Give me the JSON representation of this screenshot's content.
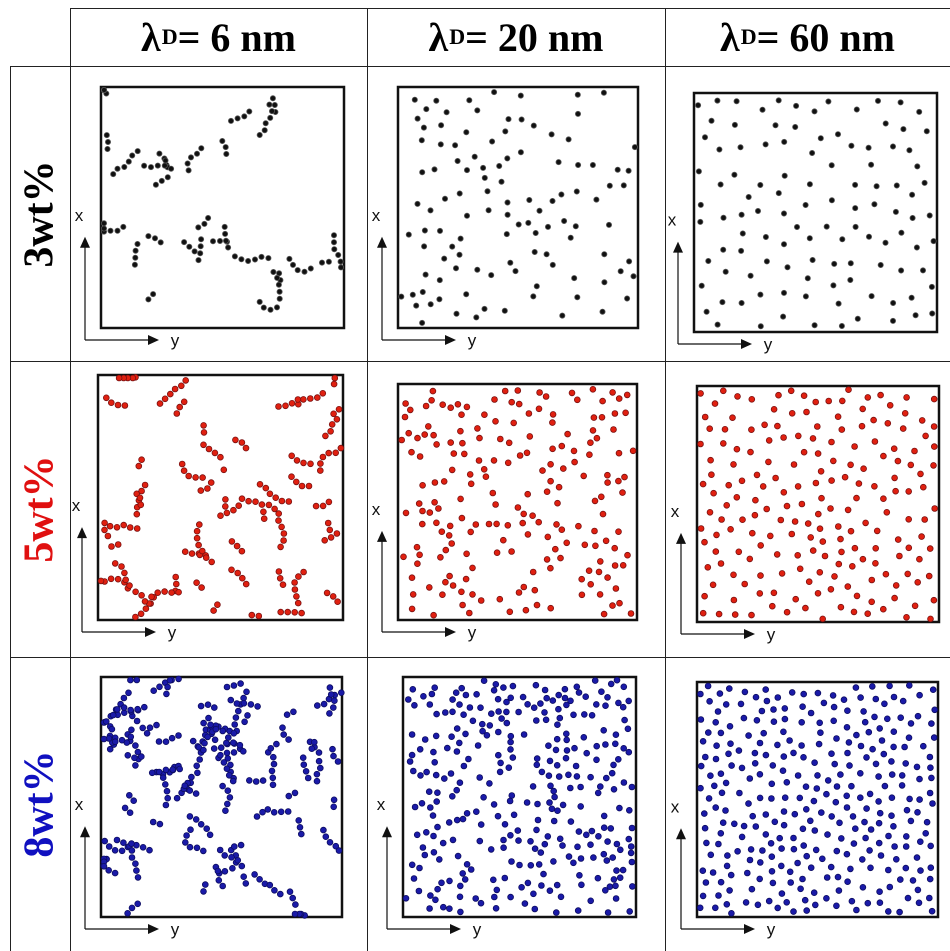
{
  "columns": [
    {
      "symbol": "λ",
      "sub": "D",
      "rest": " = 6 nm"
    },
    {
      "symbol": "λ",
      "sub": "D",
      "rest": " = 20 nm"
    },
    {
      "symbol": "λ",
      "sub": "D",
      "rest": " = 60 nm"
    }
  ],
  "rows": [
    {
      "label": "3wt%",
      "color": "#111111",
      "particles": 110,
      "ring": "#555555"
    },
    {
      "label": "5wt%",
      "color": "#e02010",
      "particles": 190,
      "ring": "#7a1010"
    },
    {
      "label": "8wt%",
      "color": "#1a1aa8",
      "particles": 300,
      "ring": "#0c0c60"
    }
  ],
  "axis": {
    "x_label": "x",
    "y_label": "y"
  },
  "spacing_order": [
    "clustered",
    "intermediate",
    "uniform"
  ]
}
